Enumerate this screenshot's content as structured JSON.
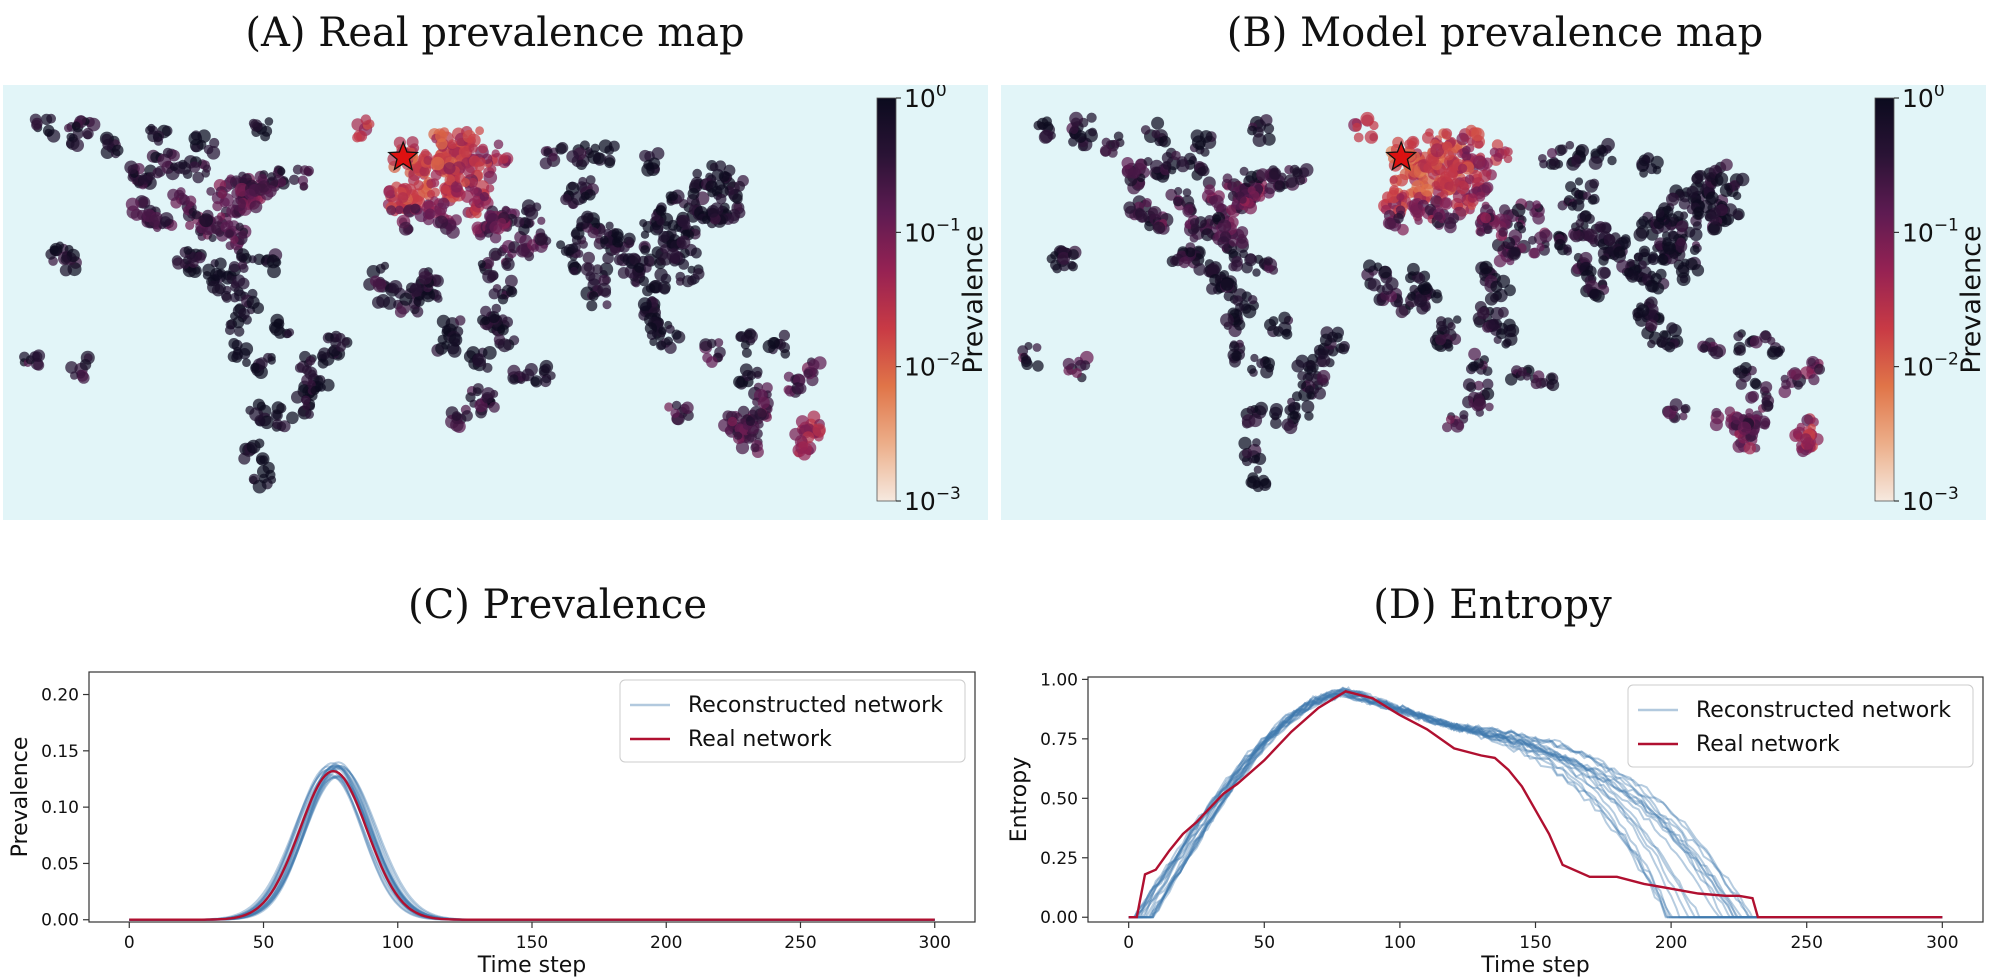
{
  "figure": {
    "panels": [
      {
        "id": "A",
        "title": "(A) Real prevalence map"
      },
      {
        "id": "B",
        "title": "(B) Model prevalence map"
      },
      {
        "id": "C",
        "title": "(C) Prevalence"
      },
      {
        "id": "D",
        "title": "(D) Entropy"
      }
    ]
  },
  "colors": {
    "ocean": "#e2f5f8",
    "reconstructed": "#3f78ad",
    "real": "#b01030",
    "star": "#dd1111",
    "colormap": [
      "#f6e9df",
      "#ecae89",
      "#e07448",
      "#c83a45",
      "#962253",
      "#5e1b52",
      "#2a1335",
      "#0b0b1e"
    ]
  },
  "colorbar": {
    "label": "Prevalence",
    "ticks": [
      {
        "base": "10",
        "exp": "0",
        "value": 1
      },
      {
        "base": "10",
        "exp": "−1",
        "value": 0.1
      },
      {
        "base": "10",
        "exp": "−2",
        "value": 0.01
      },
      {
        "base": "10",
        "exp": "−3",
        "value": 0.001
      }
    ]
  },
  "chart_data": [
    {
      "type": "line",
      "title": "(C) Prevalence",
      "xlabel": "Time step",
      "ylabel": "Prevalence",
      "xlim": [
        -15,
        315
      ],
      "ylim": [
        -0.002,
        0.22
      ],
      "xticks": [
        0,
        50,
        100,
        150,
        200,
        250,
        300
      ],
      "yticks": [
        0.0,
        0.05,
        0.1,
        0.15,
        0.2
      ],
      "ytick_labels": [
        "0.00",
        "0.05",
        "0.10",
        "0.15",
        "0.20"
      ],
      "legend": {
        "position": "top-right",
        "entries": [
          "Reconstructed network",
          "Real network"
        ]
      },
      "series": [
        {
          "name": "Real network",
          "model": "gaussian",
          "peak_time": 76,
          "peak_value": 0.132,
          "width": 12.5
        },
        {
          "name": "Reconstructed network",
          "model": "gaussian_ensemble",
          "runs": 20,
          "peak_time_range": [
            73,
            79
          ],
          "peak_value_range": [
            0.126,
            0.14
          ],
          "width_range": [
            11.5,
            13.5
          ]
        }
      ]
    },
    {
      "type": "line",
      "title": "(D) Entropy",
      "xlabel": "Time step",
      "ylabel": "Entropy",
      "xlim": [
        -15,
        315
      ],
      "ylim": [
        -0.02,
        1.01
      ],
      "xticks": [
        0,
        50,
        100,
        150,
        200,
        250,
        300
      ],
      "yticks": [
        0.0,
        0.25,
        0.5,
        0.75,
        1.0
      ],
      "ytick_labels": [
        "0.00",
        "0.25",
        "0.50",
        "0.75",
        "1.00"
      ],
      "legend": {
        "position": "top-right",
        "entries": [
          "Reconstructed network",
          "Real network"
        ]
      },
      "series": [
        {
          "name": "Real network",
          "x": [
            0,
            3,
            4,
            6,
            10,
            15,
            20,
            25,
            30,
            35,
            40,
            50,
            60,
            70,
            80,
            90,
            100,
            110,
            120,
            130,
            135,
            140,
            145,
            150,
            155,
            160,
            170,
            180,
            190,
            200,
            210,
            220,
            225,
            230,
            231,
            232,
            300
          ],
          "y": [
            0,
            0,
            0.06,
            0.18,
            0.2,
            0.28,
            0.35,
            0.4,
            0.46,
            0.52,
            0.56,
            0.66,
            0.78,
            0.88,
            0.95,
            0.92,
            0.85,
            0.79,
            0.71,
            0.68,
            0.67,
            0.62,
            0.55,
            0.45,
            0.35,
            0.22,
            0.17,
            0.17,
            0.14,
            0.12,
            0.1,
            0.09,
            0.09,
            0.08,
            0.04,
            0,
            0
          ]
        },
        {
          "name": "Reconstructed network",
          "model": "ensemble",
          "runs": 20
        }
      ]
    }
  ],
  "map_data": {
    "star_location": "Western Europe (outbreak origin)",
    "points": [
      [
        -122,
        37,
        0.3
      ],
      [
        -118,
        34,
        0.4
      ],
      [
        -104,
        40,
        0.25
      ],
      [
        -95,
        30,
        0.2
      ],
      [
        -87,
        42,
        0.15
      ],
      [
        -80,
        26,
        0.3
      ],
      [
        -74,
        41,
        0.1
      ],
      [
        -71,
        42,
        0.12
      ],
      [
        -84,
        34,
        0.2
      ],
      [
        -97,
        33,
        0.25
      ],
      [
        -112,
        33,
        0.3
      ],
      [
        -122,
        47,
        0.35
      ],
      [
        -123,
        49,
        0.4
      ],
      [
        -114,
        51,
        0.5
      ],
      [
        -79,
        44,
        0.2
      ],
      [
        -73,
        46,
        0.3
      ],
      [
        -90,
        30,
        0.4
      ],
      [
        -81,
        28,
        0.2
      ],
      [
        -77,
        39,
        0.15
      ],
      [
        -75,
        40,
        0.15
      ],
      [
        -99,
        19,
        0.6
      ],
      [
        -103,
        21,
        0.7
      ],
      [
        -90,
        15,
        0.8
      ],
      [
        -86,
        12,
        0.9
      ],
      [
        -80,
        9,
        0.7
      ],
      [
        -66,
        18,
        0.5
      ],
      [
        -77,
        18,
        0.6
      ],
      [
        -74,
        5,
        0.8
      ],
      [
        -79,
        -2,
        0.85
      ],
      [
        -77,
        -12,
        0.7
      ],
      [
        -68,
        -16,
        0.9
      ],
      [
        -70,
        -33,
        0.7
      ],
      [
        -58,
        -34,
        0.6
      ],
      [
        -47,
        -23,
        0.75
      ],
      [
        -43,
        -23,
        0.7
      ],
      [
        -38,
        -13,
        0.8
      ],
      [
        -35,
        -8,
        0.85
      ],
      [
        -60,
        -3,
        0.9
      ],
      [
        -48,
        -16,
        0.8
      ],
      [
        -51,
        -30,
        0.7
      ],
      [
        -72,
        -45,
        0.8
      ],
      [
        -68,
        -54,
        0.9
      ],
      [
        -150,
        61,
        0.5
      ],
      [
        -147,
        64,
        0.6
      ],
      [
        -135,
        58,
        0.7
      ],
      [
        -165,
        64,
        0.8
      ],
      [
        -158,
        21,
        0.5
      ],
      [
        -155,
        19,
        0.6
      ],
      [
        -60,
        47,
        0.35
      ],
      [
        -52,
        47,
        0.4
      ],
      [
        -64,
        45,
        0.3
      ],
      [
        -97,
        50,
        0.45
      ],
      [
        -106,
        52,
        0.4
      ],
      [
        -68,
        63,
        0.7
      ],
      [
        -94,
        58,
        0.8
      ],
      [
        -115,
        62,
        0.7
      ],
      [
        0,
        51,
        0.02
      ],
      [
        2,
        48,
        0.015
      ],
      [
        -3,
        40,
        0.02
      ],
      [
        13,
        52,
        0.015
      ],
      [
        12,
        42,
        0.02
      ],
      [
        -9,
        39,
        0.03
      ],
      [
        4,
        52,
        0.02
      ],
      [
        8,
        50,
        0.02
      ],
      [
        16,
        48,
        0.025
      ],
      [
        18,
        59,
        0.02
      ],
      [
        10,
        59,
        0.02
      ],
      [
        24,
        60,
        0.025
      ],
      [
        21,
        52,
        0.03
      ],
      [
        37,
        55,
        0.05
      ],
      [
        30,
        50,
        0.04
      ],
      [
        26,
        44,
        0.05
      ],
      [
        23,
        38,
        0.04
      ],
      [
        29,
        41,
        0.06
      ],
      [
        -6,
        53,
        0.015
      ],
      [
        -4,
        56,
        0.02
      ],
      [
        -22,
        64,
        0.03
      ],
      [
        12,
        55,
        0.02
      ],
      [
        25,
        54,
        0.04
      ],
      [
        -8,
        43,
        0.02
      ],
      [
        14,
        45,
        0.03
      ],
      [
        19,
        47,
        0.03
      ],
      [
        5,
        43,
        0.02
      ],
      [
        31,
        30,
        0.1
      ],
      [
        -7,
        33,
        0.15
      ],
      [
        3,
        36,
        0.12
      ],
      [
        10,
        36,
        0.1
      ],
      [
        13,
        32,
        0.2
      ],
      [
        39,
        21,
        0.2
      ],
      [
        46,
        24,
        0.3
      ],
      [
        55,
        25,
        0.25
      ],
      [
        51,
        35,
        0.3
      ],
      [
        44,
        33,
        0.35
      ],
      [
        36,
        33,
        0.2
      ],
      [
        35,
        31,
        0.15
      ],
      [
        -17,
        14,
        0.4
      ],
      [
        -4,
        5,
        0.5
      ],
      [
        3,
        6,
        0.6
      ],
      [
        7,
        9,
        0.6
      ],
      [
        32,
        15,
        0.5
      ],
      [
        38,
        9,
        0.55
      ],
      [
        36,
        -1,
        0.6
      ],
      [
        39,
        -6,
        0.7
      ],
      [
        28,
        -26,
        0.4
      ],
      [
        18,
        -34,
        0.3
      ],
      [
        31,
        -29,
        0.4
      ],
      [
        47,
        -19,
        0.6
      ],
      [
        15,
        -4,
        0.6
      ],
      [
        13,
        -9,
        0.7
      ],
      [
        57,
        -20,
        0.5
      ],
      [
        28,
        -15,
        0.7
      ],
      [
        32,
        0,
        0.6
      ],
      [
        -13,
        8,
        0.5
      ],
      [
        2,
        13,
        0.7
      ],
      [
        77,
        28,
        0.6
      ],
      [
        72,
        19,
        0.55
      ],
      [
        80,
        13,
        0.7
      ],
      [
        88,
        22,
        0.75
      ],
      [
        67,
        25,
        0.6
      ],
      [
        74,
        31,
        0.5
      ],
      [
        90,
        24,
        0.7
      ],
      [
        85,
        28,
        0.6
      ],
      [
        80,
        7,
        0.6
      ],
      [
        100,
        14,
        0.7
      ],
      [
        106,
        11,
        0.75
      ],
      [
        105,
        21,
        0.7
      ],
      [
        101,
        3,
        0.7
      ],
      [
        104,
        1,
        0.6
      ],
      [
        107,
        -6,
        0.8
      ],
      [
        112,
        -7,
        0.8
      ],
      [
        121,
        15,
        0.75
      ],
      [
        116,
        40,
        0.8
      ],
      [
        121,
        31,
        0.85
      ],
      [
        113,
        23,
        0.85
      ],
      [
        114,
        30,
        0.8
      ],
      [
        104,
        31,
        0.85
      ],
      [
        108,
        34,
        0.8
      ],
      [
        126,
        37,
        0.6
      ],
      [
        127,
        45,
        0.7
      ],
      [
        139,
        36,
        0.55
      ],
      [
        135,
        35,
        0.6
      ],
      [
        130,
        33,
        0.6
      ],
      [
        141,
        43,
        0.6
      ],
      [
        121,
        25,
        0.7
      ],
      [
        114,
        22,
        0.8
      ],
      [
        96,
        17,
        0.8
      ],
      [
        69,
        41,
        0.6
      ],
      [
        76,
        43,
        0.6
      ],
      [
        61,
        55,
        0.5
      ],
      [
        73,
        55,
        0.6
      ],
      [
        83,
        55,
        0.7
      ],
      [
        104,
        52,
        0.8
      ],
      [
        132,
        43,
        0.7
      ],
      [
        135,
        48,
        0.7
      ],
      [
        147,
        -20,
        0.6
      ],
      [
        151,
        -34,
        0.2
      ],
      [
        145,
        -38,
        0.2
      ],
      [
        153,
        -27,
        0.25
      ],
      [
        138,
        -35,
        0.2
      ],
      [
        116,
        -32,
        0.2
      ],
      [
        131,
        -12,
        0.3
      ],
      [
        147,
        -42,
        0.15
      ],
      [
        174,
        -37,
        0.05
      ],
      [
        175,
        -41,
        0.05
      ],
      [
        172,
        -43,
        0.05
      ],
      [
        149,
        -35,
        0.2
      ],
      [
        144,
        -37,
        0.2
      ],
      [
        178,
        -18,
        0.15
      ],
      [
        -149,
        -17,
        0.3
      ],
      [
        -171,
        -13,
        0.35
      ],
      [
        166,
        -22,
        0.2
      ],
      [
        147,
        -9,
        0.6
      ],
      [
        159,
        -9,
        0.6
      ]
    ]
  }
}
